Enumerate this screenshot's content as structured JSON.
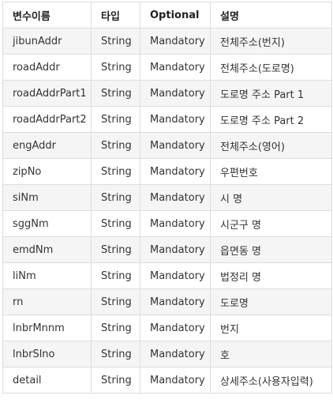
{
  "table": {
    "headers": [
      "변수이름",
      "타입",
      "Optional",
      "설명"
    ],
    "rows": [
      [
        "jibunAddr",
        "String",
        "Mandatory",
        "전체주소(번지)"
      ],
      [
        "roadAddr",
        "String",
        "Mandatory",
        "전체주소(도로명)"
      ],
      [
        "roadAddrPart1",
        "String",
        "Mandatory",
        "도로명 주소 Part 1"
      ],
      [
        "roadAddrPart2",
        "String",
        "Mandatory",
        "도로명 주소 Part 2"
      ],
      [
        "engAddr",
        "String",
        "Mandatory",
        "전체주소(영어)"
      ],
      [
        "zipNo",
        "String",
        "Mandatory",
        "우편번호"
      ],
      [
        "siNm",
        "String",
        "Mandatory",
        "시 명"
      ],
      [
        "sggNm",
        "String",
        "Mandatory",
        "시군구 명"
      ],
      [
        "emdNm",
        "String",
        "Mandatory",
        "읍면동 명"
      ],
      [
        "liNm",
        "String",
        "Mandatory",
        "법정리 명"
      ],
      [
        "rn",
        "String",
        "Mandatory",
        "도로명"
      ],
      [
        "lnbrMnnm",
        "String",
        "Mandatory",
        "번지"
      ],
      [
        "lnbrSlno",
        "String",
        "Mandatory",
        "호"
      ],
      [
        "detail",
        "String",
        "Mandatory",
        "상세주소(사용자입력)"
      ]
    ]
  },
  "colors": {
    "border": "#dddddd",
    "stripe": "#f5f5f5",
    "text": "#333333"
  }
}
